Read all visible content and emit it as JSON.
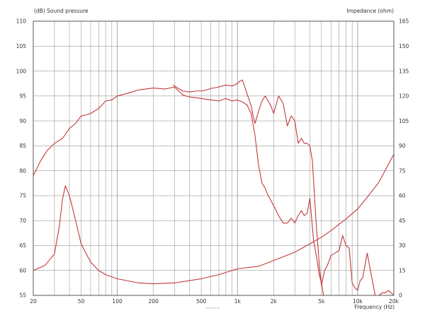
{
  "chart_data": {
    "type": "line",
    "left_axis_label": "(dB)  Sound pressure",
    "right_axis_label": "Impedance  (ohm)",
    "x_axis_label": "Frequency  (Hz)",
    "watermark": "www.lexi.pl",
    "x_scale": "log",
    "xlim": [
      20,
      20000
    ],
    "ylim_left": [
      55,
      110
    ],
    "ylim_right": [
      0,
      165
    ],
    "grid": true,
    "colors": {
      "grid": "#9a9a9a",
      "curve": "#c23a3a",
      "text": "#333333",
      "frame": "#555555"
    },
    "x_ticks": [
      {
        "value": 20,
        "label": "20"
      },
      {
        "value": 50,
        "label": "50"
      },
      {
        "value": 100,
        "label": "100"
      },
      {
        "value": 200,
        "label": "200"
      },
      {
        "value": 500,
        "label": "500"
      },
      {
        "value": 1000,
        "label": "1k"
      },
      {
        "value": 2000,
        "label": "2k"
      },
      {
        "value": 5000,
        "label": "5k"
      },
      {
        "value": 10000,
        "label": "10k"
      },
      {
        "value": 20000,
        "label": "20k"
      }
    ],
    "y_ticks_left": [
      {
        "value": 55,
        "label": "55"
      },
      {
        "value": 60,
        "label": "60"
      },
      {
        "value": 65,
        "label": "65"
      },
      {
        "value": 70,
        "label": "70"
      },
      {
        "value": 75,
        "label": "75"
      },
      {
        "value": 80,
        "label": "80"
      },
      {
        "value": 85,
        "label": "85"
      },
      {
        "value": 90,
        "label": "90"
      },
      {
        "value": 95,
        "label": "95"
      },
      {
        "value": 100,
        "label": "100"
      },
      {
        "value": 105,
        "label": "105"
      },
      {
        "value": 110,
        "label": "110"
      }
    ],
    "y_ticks_right": [
      {
        "value": 0,
        "label": "0"
      },
      {
        "value": 15,
        "label": "15"
      },
      {
        "value": 30,
        "label": "30"
      },
      {
        "value": 45,
        "label": "45"
      },
      {
        "value": 60,
        "label": "60"
      },
      {
        "value": 75,
        "label": "75"
      },
      {
        "value": 90,
        "label": "90"
      },
      {
        "value": 105,
        "label": "105"
      },
      {
        "value": 120,
        "label": "120"
      },
      {
        "value": 135,
        "label": "135"
      },
      {
        "value": 150,
        "label": "150"
      },
      {
        "value": 165,
        "label": "165"
      }
    ],
    "series": [
      {
        "axis": "left",
        "x": [
          20,
          23,
          26,
          30,
          35,
          40,
          45,
          50,
          55,
          60,
          70,
          80,
          90,
          100,
          120,
          150,
          200,
          250,
          300,
          350,
          400,
          500,
          600,
          700,
          800,
          900,
          1000,
          1100,
          1200,
          1300,
          1400,
          1500,
          1600,
          1700,
          1800,
          1900,
          2000,
          2200,
          2400,
          2600,
          2800,
          3000,
          3200,
          3400,
          3600,
          3800,
          4000,
          4300,
          4600,
          4800,
          5000,
          5200
        ],
        "y": [
          79,
          82,
          84,
          85.5,
          86.5,
          88.5,
          89.5,
          91,
          91.2,
          91.5,
          92.5,
          94,
          94.2,
          95,
          95.5,
          96.2,
          96.6,
          96.4,
          96.8,
          95.2,
          94.8,
          94.5,
          94.2,
          94.0,
          94.5,
          94.0,
          94.2,
          93.8,
          93.2,
          91.5,
          87,
          81,
          77.5,
          76.5,
          75,
          74,
          73,
          71,
          69.5,
          69.5,
          70.5,
          69.5,
          71,
          72,
          71,
          71.5,
          74.5,
          66,
          62,
          59,
          57.5,
          55
        ]
      },
      {
        "axis": "left",
        "x": [
          290,
          350,
          400,
          450,
          500,
          550,
          600,
          700,
          800,
          900,
          1000,
          1050,
          1100,
          1200,
          1300,
          1350,
          1400,
          1500,
          1600,
          1700,
          1800,
          1900,
          2000,
          2200,
          2400,
          2600,
          2800,
          3000,
          3200,
          3400,
          3600,
          3800,
          4000,
          4200,
          4500,
          4800,
          5000,
          5300,
          5600,
          6000,
          6500,
          7000,
          7500,
          8000,
          8500,
          9000,
          9500,
          10000,
          10500,
          11000,
          11500,
          12000,
          13000,
          14000,
          15000,
          16000,
          17000,
          18000,
          19000,
          20000
        ],
        "y": [
          97.2,
          96,
          95.8,
          96,
          96,
          96.2,
          96.5,
          96.8,
          97.2,
          97,
          97.5,
          98,
          98.2,
          95.5,
          93,
          91,
          89.5,
          92,
          94,
          95,
          94,
          93,
          91.5,
          95,
          93.5,
          89,
          91,
          90,
          85.5,
          86.5,
          85.5,
          85.5,
          85,
          82,
          70,
          61,
          57,
          60,
          61,
          63,
          63.5,
          64,
          67,
          65,
          64.5,
          57.5,
          56.5,
          56,
          58,
          58.5,
          61,
          63.5,
          59,
          55,
          55,
          55.5,
          55.5,
          56,
          55.5,
          55
        ]
      },
      {
        "axis": "right",
        "x": [
          20,
          25,
          30,
          33,
          35,
          37,
          40,
          45,
          50,
          60,
          70,
          80,
          100,
          150,
          200,
          300,
          500,
          700,
          1000,
          1500,
          2000,
          3000,
          4000,
          5000,
          6000,
          8000,
          10000,
          12000,
          15000,
          20000
        ],
        "y": [
          15,
          18,
          25,
          42,
          58,
          66,
          60,
          45,
          31,
          20,
          15,
          12.5,
          10,
          7.5,
          7,
          7.5,
          10,
          12.5,
          16,
          17.5,
          21,
          26,
          31,
          35,
          39,
          46,
          52,
          59,
          68,
          85
        ]
      }
    ]
  }
}
